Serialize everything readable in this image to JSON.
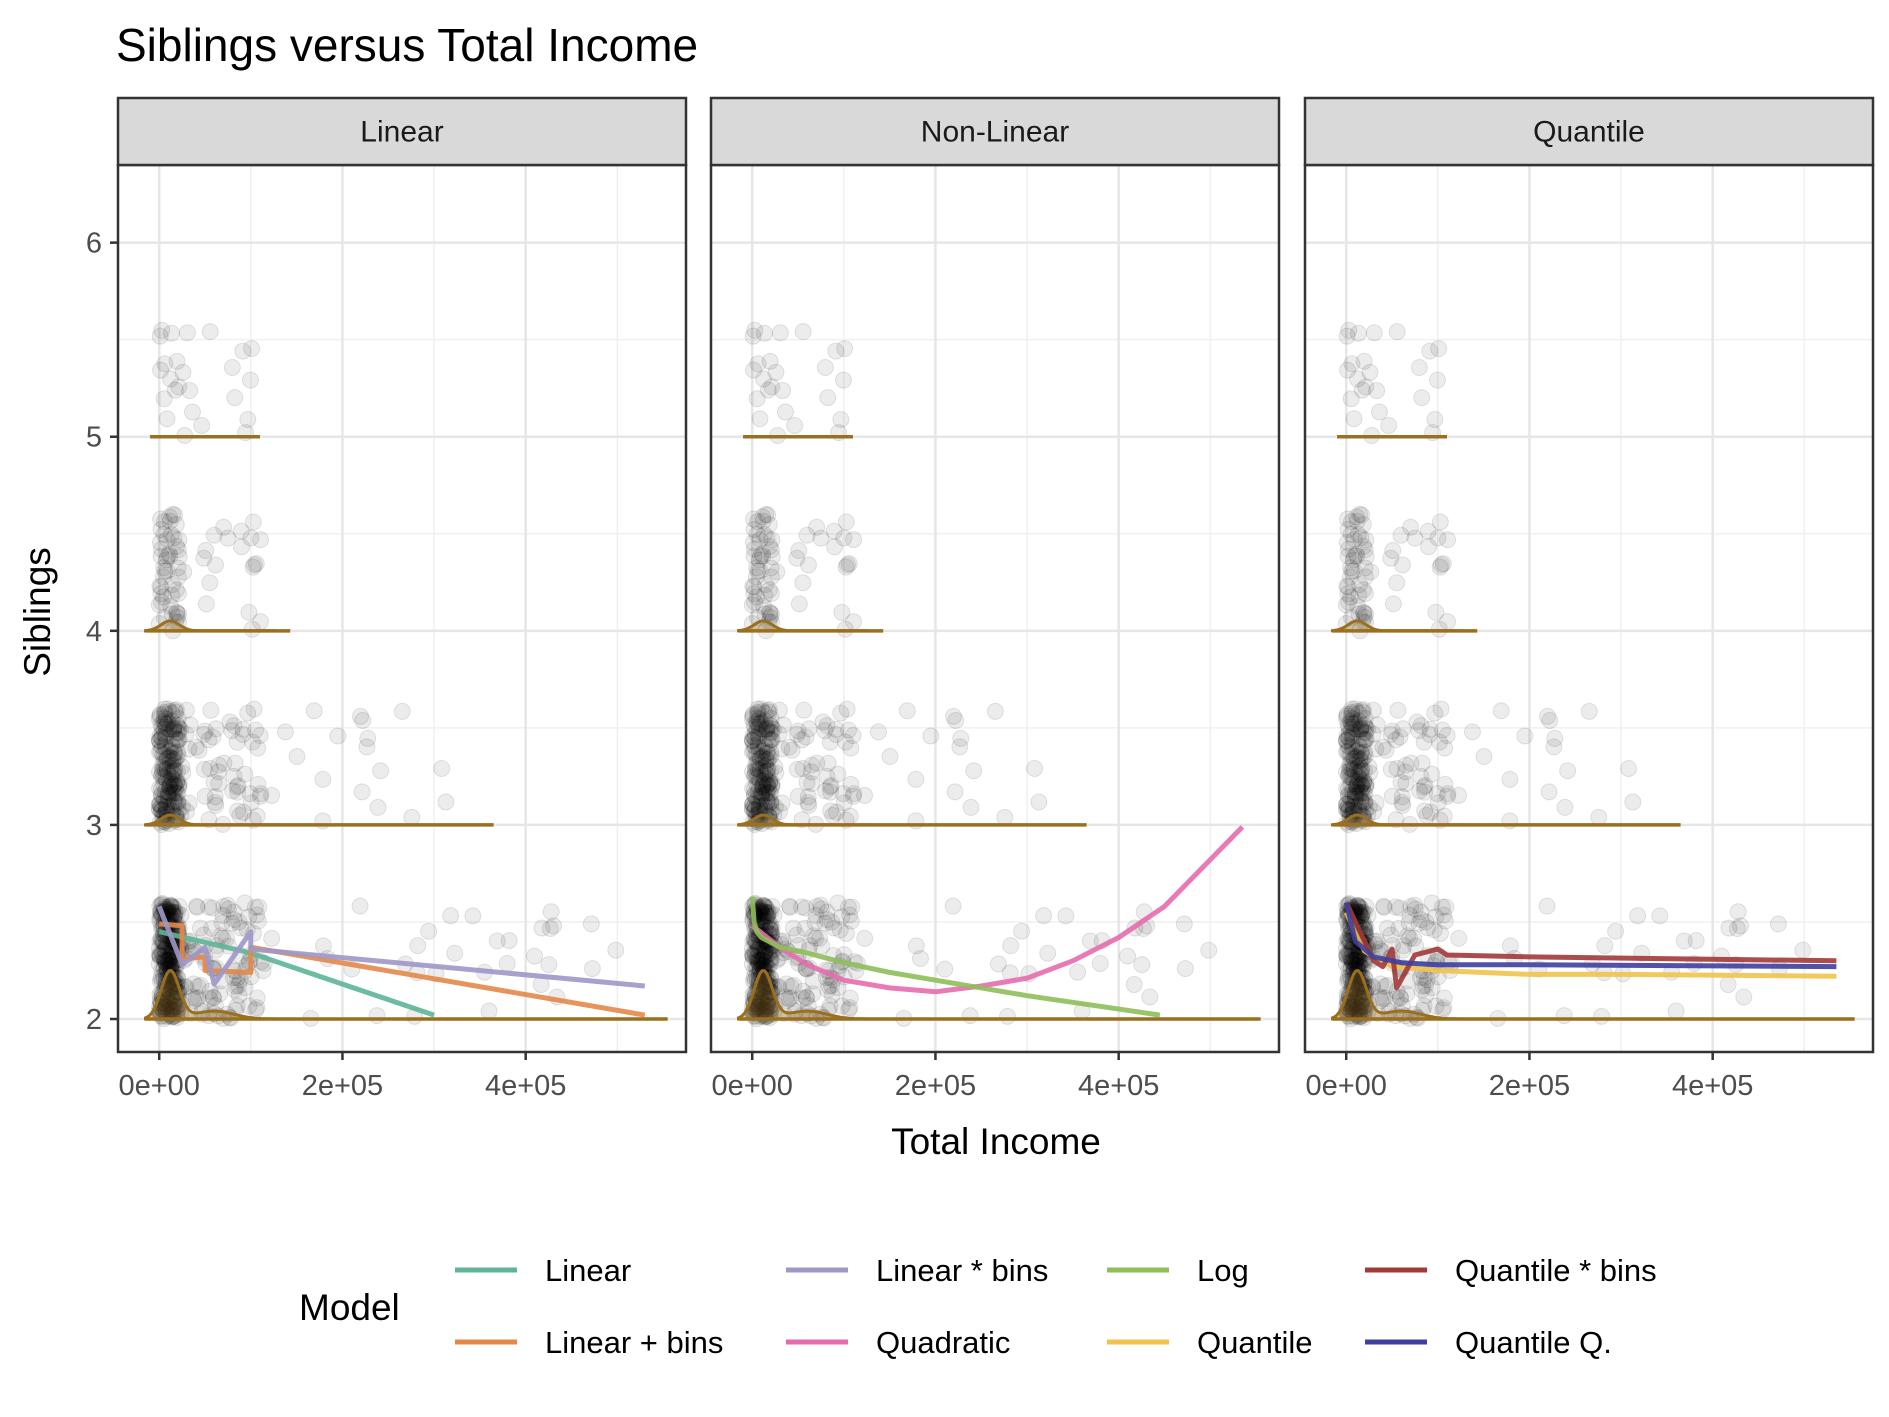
{
  "chart_data": {
    "type": "line",
    "title": "Siblings versus Total Income",
    "xlabel": "Total Income",
    "ylabel": "Siblings",
    "xlim": [
      -45000,
      575000
    ],
    "ylim": [
      1.83,
      6.4
    ],
    "x_ticks": [
      0,
      200000,
      400000
    ],
    "x_tick_labels": [
      "0e+00",
      "2e+05",
      "4e+05"
    ],
    "y_ticks": [
      2,
      3,
      4,
      5,
      6
    ],
    "y_tick_labels": [
      "2",
      "3",
      "4",
      "5",
      "6"
    ],
    "grid": true,
    "legend": {
      "title": "Model",
      "placement": "bottom",
      "entries": [
        {
          "label": "Linear",
          "color": "#5DB596"
        },
        {
          "label": "Linear + bins",
          "color": "#E4884A"
        },
        {
          "label": "Linear * bins",
          "color": "#9E97C8"
        },
        {
          "label": "Quadratic",
          "color": "#E56BAE"
        },
        {
          "label": "Log",
          "color": "#8FBE5A"
        },
        {
          "label": "Quantile",
          "color": "#F0C34E"
        },
        {
          "label": "Quantile * bins",
          "color": "#A33A3A"
        },
        {
          "label": "Quantile Q.",
          "color": "#3E3F9E"
        }
      ]
    },
    "density_color": "#9A6F1E",
    "points_color": "#000000",
    "panels": [
      {
        "label": "Linear",
        "series": [
          {
            "name": "Linear",
            "color": "#5DB596",
            "x": [
              0,
              100000,
              200000,
              300000
            ],
            "y": [
              2.45,
              2.34,
              2.18,
              2.02
            ]
          },
          {
            "name": "Linear + bins",
            "color": "#E4884A",
            "x": [
              0,
              25000,
              25000,
              50000,
              50000,
              100000,
              100000,
              530000
            ],
            "y": [
              2.49,
              2.48,
              2.31,
              2.32,
              2.25,
              2.24,
              2.37,
              2.02
            ]
          },
          {
            "name": "Linear * bins",
            "color": "#9E97C8",
            "x": [
              0,
              25000,
              50000,
              60000,
              100000,
              100000,
              530000
            ],
            "y": [
              2.58,
              2.28,
              2.37,
              2.18,
              2.45,
              2.36,
              2.17
            ]
          }
        ]
      },
      {
        "label": "Non-Linear",
        "series": [
          {
            "name": "Quadratic",
            "color": "#E56BAE",
            "x": [
              0,
              30000,
              60000,
              100000,
              150000,
              200000,
              250000,
              300000,
              350000,
              400000,
              450000,
              535000
            ],
            "y": [
              2.48,
              2.37,
              2.28,
              2.2,
              2.16,
              2.14,
              2.17,
              2.21,
              2.3,
              2.42,
              2.58,
              2.99
            ]
          },
          {
            "name": "Log",
            "color": "#8FBE5A",
            "x": [
              0,
              2000,
              5000,
              10000,
              30000,
              60000,
              100000,
              150000,
              200000,
              300000,
              445000
            ],
            "y": [
              2.63,
              2.5,
              2.45,
              2.42,
              2.37,
              2.34,
              2.29,
              2.24,
              2.2,
              2.12,
              2.02
            ]
          }
        ]
      },
      {
        "label": "Quantile",
        "series": [
          {
            "name": "Quantile",
            "color": "#F0C34E",
            "x": [
              0,
              20000,
              50000,
              100000,
              200000,
              300000,
              535000
            ],
            "y": [
              2.55,
              2.35,
              2.27,
              2.25,
              2.23,
              2.23,
              2.22
            ]
          },
          {
            "name": "Quantile * bins",
            "color": "#A33A3A",
            "x": [
              0,
              30000,
              40000,
              50000,
              55000,
              75000,
              100000,
              110000,
              200000,
              535000
            ],
            "y": [
              2.6,
              2.3,
              2.27,
              2.36,
              2.16,
              2.33,
              2.36,
              2.33,
              2.32,
              2.3
            ]
          },
          {
            "name": "Quantile Q.",
            "color": "#3E3F9E",
            "x": [
              0,
              10000,
              30000,
              60000,
              100000,
              200000,
              535000
            ],
            "y": [
              2.6,
              2.4,
              2.32,
              2.29,
              2.28,
              2.28,
              2.27
            ]
          }
        ]
      }
    ]
  }
}
